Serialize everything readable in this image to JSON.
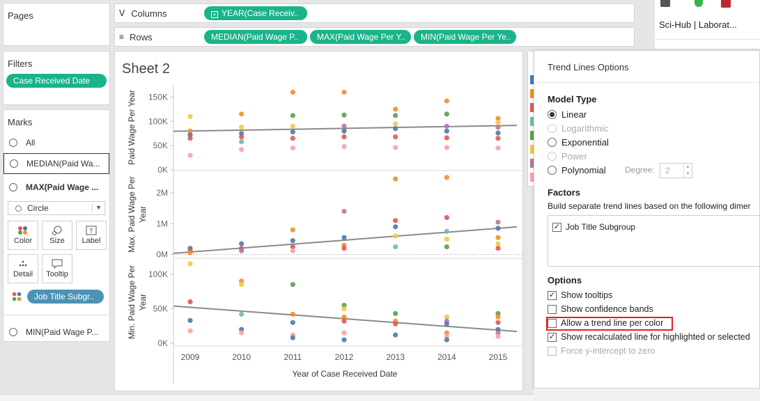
{
  "left_panel": {
    "pages_title": "Pages",
    "filters_title": "Filters",
    "filter_pill": "Case Received Date",
    "marks_title": "Marks",
    "marks_items": [
      "All",
      "MEDIAN(Paid Wa...",
      "MAX(Paid Wage ..."
    ],
    "marks_last_item": "MIN(Paid Wage P...",
    "mark_type": "Circle",
    "buttons": {
      "color": "Color",
      "size": "Size",
      "label": "Label",
      "detail": "Detail",
      "tooltip": "Tooltip"
    },
    "color_pill": "Job Title Subgr.."
  },
  "shelves": {
    "columns_label": "Columns",
    "rows_label": "Rows",
    "columns_pill": "YEAR(Case Receiv..",
    "rows_pills": [
      "MEDIAN(Paid Wage P..",
      "MAX(Paid Wage Per Y..",
      "MIN(Paid Wage Per Ye.."
    ]
  },
  "browser_tab": {
    "title": "Sci-Hub | Laborat..."
  },
  "sheet": {
    "title": "Sheet 2",
    "x_title": "Year of Case Received Date"
  },
  "trend_dialog": {
    "title": "Trend Lines Options",
    "model_type_label": "Model Type",
    "models": [
      {
        "label": "Linear",
        "selected": true,
        "enabled": true
      },
      {
        "label": "Logarithmic",
        "selected": false,
        "enabled": false
      },
      {
        "label": "Exponential",
        "selected": false,
        "enabled": true
      },
      {
        "label": "Power",
        "selected": false,
        "enabled": false
      },
      {
        "label": "Polynomial",
        "selected": false,
        "enabled": true
      }
    ],
    "degree_label": "Degree:",
    "degree_value": "2",
    "factors_label": "Factors",
    "factors_desc": "Build separate trend lines based on the following dimer",
    "factor_item": "Job Title Subgroup",
    "options_label": "Options",
    "options": [
      {
        "label": "Show tooltips",
        "checked": true,
        "enabled": true
      },
      {
        "label": "Show confidence bands",
        "checked": false,
        "enabled": true
      },
      {
        "label": "Allow a trend line per color",
        "checked": false,
        "enabled": true
      },
      {
        "label": "Show recalculated line for highlighted or selected",
        "checked": true,
        "enabled": true
      },
      {
        "label": "Force y-intercept to zero",
        "checked": false,
        "enabled": false
      }
    ]
  },
  "legend_colors": [
    "#4e79a7",
    "#f28e2b",
    "#e15759",
    "#76b7b2",
    "#59a14f",
    "#edc948",
    "#b07aa1",
    "#ff9da7"
  ],
  "chart_data": {
    "type": "scatter",
    "x": [
      2009,
      2010,
      2011,
      2012,
      2013,
      2014,
      2015
    ],
    "x_ticks": [
      "2009",
      "2010",
      "2011",
      "2012",
      "2013",
      "2014",
      "2015"
    ],
    "xlabel": "Year of Case Received Date",
    "panels": [
      {
        "name": "median",
        "ylabel": "Paid Wage Per Year",
        "ylim": [
          0,
          175000
        ],
        "yticks": [
          0,
          50000,
          100000,
          150000
        ],
        "ytick_labels": [
          "0K",
          "50K",
          "100K",
          "150K"
        ],
        "trend": [
          80000,
          91000
        ],
        "points": [
          [
            2009,
            110000,
            "#edc948"
          ],
          [
            2009,
            80000,
            "#f28e2b"
          ],
          [
            2009,
            72000,
            "#4e79a7"
          ],
          [
            2009,
            65000,
            "#e15759"
          ],
          [
            2009,
            30000,
            "#ff9da7"
          ],
          [
            2010,
            115000,
            "#f28e2b"
          ],
          [
            2010,
            88000,
            "#edc948"
          ],
          [
            2010,
            75000,
            "#4e79a7"
          ],
          [
            2010,
            68000,
            "#e15759"
          ],
          [
            2010,
            58000,
            "#76b7b2"
          ],
          [
            2010,
            42000,
            "#ff9da7"
          ],
          [
            2011,
            160000,
            "#f28e2b"
          ],
          [
            2011,
            112000,
            "#59a14f"
          ],
          [
            2011,
            90000,
            "#edc948"
          ],
          [
            2011,
            78000,
            "#4e79a7"
          ],
          [
            2011,
            65000,
            "#e15759"
          ],
          [
            2011,
            45000,
            "#ff9da7"
          ],
          [
            2012,
            160000,
            "#f28e2b"
          ],
          [
            2012,
            113000,
            "#59a14f"
          ],
          [
            2012,
            90000,
            "#b07aa1"
          ],
          [
            2012,
            80000,
            "#4e79a7"
          ],
          [
            2012,
            68000,
            "#e15759"
          ],
          [
            2012,
            48000,
            "#ff9da7"
          ],
          [
            2013,
            125000,
            "#f28e2b"
          ],
          [
            2013,
            112000,
            "#59a14f"
          ],
          [
            2013,
            95000,
            "#edc948"
          ],
          [
            2013,
            85000,
            "#4e79a7"
          ],
          [
            2013,
            68000,
            "#e15759"
          ],
          [
            2013,
            46000,
            "#ff9da7"
          ],
          [
            2014,
            142000,
            "#f28e2b"
          ],
          [
            2014,
            115000,
            "#59a14f"
          ],
          [
            2014,
            90000,
            "#b07aa1"
          ],
          [
            2014,
            80000,
            "#4e79a7"
          ],
          [
            2014,
            66000,
            "#e15759"
          ],
          [
            2014,
            46000,
            "#ff9da7"
          ],
          [
            2015,
            106000,
            "#f28e2b"
          ],
          [
            2015,
            98000,
            "#edc948"
          ],
          [
            2015,
            88000,
            "#b07aa1"
          ],
          [
            2015,
            76000,
            "#4e79a7"
          ],
          [
            2015,
            65000,
            "#e15759"
          ],
          [
            2015,
            45000,
            "#ff9da7"
          ]
        ]
      },
      {
        "name": "max",
        "ylabel": "Max. Paid Wage Per Year",
        "ylim": [
          -100000,
          2700000
        ],
        "yticks": [
          0,
          1000000,
          2000000
        ],
        "ytick_labels": [
          "0M",
          "1M",
          "2M"
        ],
        "trend": [
          80000,
          850000
        ],
        "points": [
          [
            2009,
            200000,
            "#4e79a7"
          ],
          [
            2009,
            120000,
            "#e15759"
          ],
          [
            2009,
            60000,
            "#f28e2b"
          ],
          [
            2010,
            350000,
            "#4e79a7"
          ],
          [
            2010,
            200000,
            "#e15759"
          ],
          [
            2010,
            120000,
            "#b07aa1"
          ],
          [
            2011,
            800000,
            "#f28e2b"
          ],
          [
            2011,
            450000,
            "#4e79a7"
          ],
          [
            2011,
            250000,
            "#e15759"
          ],
          [
            2011,
            120000,
            "#ff9da7"
          ],
          [
            2012,
            1400000,
            "#b07aa1"
          ],
          [
            2012,
            550000,
            "#4e79a7"
          ],
          [
            2012,
            300000,
            "#f28e2b"
          ],
          [
            2012,
            200000,
            "#e15759"
          ],
          [
            2013,
            2450000,
            "#f28e2b"
          ],
          [
            2013,
            1100000,
            "#e15759"
          ],
          [
            2013,
            900000,
            "#4e79a7"
          ],
          [
            2013,
            600000,
            "#edc948"
          ],
          [
            2013,
            250000,
            "#76b7b2"
          ],
          [
            2014,
            2500000,
            "#f28e2b"
          ],
          [
            2014,
            1200000,
            "#e15759"
          ],
          [
            2014,
            750000,
            "#76b7b2"
          ],
          [
            2014,
            500000,
            "#edc948"
          ],
          [
            2014,
            250000,
            "#59a14f"
          ],
          [
            2015,
            1050000,
            "#b07aa1"
          ],
          [
            2015,
            850000,
            "#4e79a7"
          ],
          [
            2015,
            550000,
            "#f28e2b"
          ],
          [
            2015,
            350000,
            "#edc948"
          ],
          [
            2015,
            200000,
            "#e15759"
          ]
        ]
      },
      {
        "name": "min",
        "ylabel": "Min. Paid Wage Per Year",
        "ylim": [
          -3000,
          122000
        ],
        "yticks": [
          0,
          50000,
          100000
        ],
        "ytick_labels": [
          "0K",
          "50K",
          "100K"
        ],
        "trend": [
          52000,
          19000
        ],
        "points": [
          [
            2009,
            115000,
            "#edc948"
          ],
          [
            2009,
            60000,
            "#e15759"
          ],
          [
            2009,
            33000,
            "#4e79a7"
          ],
          [
            2009,
            18000,
            "#ff9da7"
          ],
          [
            2010,
            90000,
            "#f28e2b"
          ],
          [
            2010,
            85000,
            "#edc948"
          ],
          [
            2010,
            42000,
            "#76b7b2"
          ],
          [
            2010,
            20000,
            "#4e79a7"
          ],
          [
            2010,
            15000,
            "#ff9da7"
          ],
          [
            2011,
            85000,
            "#59a14f"
          ],
          [
            2011,
            42000,
            "#f28e2b"
          ],
          [
            2011,
            30000,
            "#4e79a7"
          ],
          [
            2011,
            12000,
            "#ff9da7"
          ],
          [
            2011,
            8000,
            "#4e79a7"
          ],
          [
            2012,
            55000,
            "#59a14f"
          ],
          [
            2012,
            50000,
            "#edc948"
          ],
          [
            2012,
            38000,
            "#f28e2b"
          ],
          [
            2012,
            32000,
            "#e15759"
          ],
          [
            2012,
            15000,
            "#ff9da7"
          ],
          [
            2012,
            5000,
            "#4e79a7"
          ],
          [
            2013,
            43000,
            "#59a14f"
          ],
          [
            2013,
            32000,
            "#f28e2b"
          ],
          [
            2013,
            28000,
            "#e15759"
          ],
          [
            2013,
            12000,
            "#4e79a7"
          ],
          [
            2014,
            38000,
            "#edc948"
          ],
          [
            2014,
            32000,
            "#b07aa1"
          ],
          [
            2014,
            28000,
            "#4e79a7"
          ],
          [
            2014,
            15000,
            "#f28e2b"
          ],
          [
            2014,
            10000,
            "#ff9da7"
          ],
          [
            2014,
            5000,
            "#4e79a7"
          ],
          [
            2015,
            43000,
            "#59a14f"
          ],
          [
            2015,
            38000,
            "#f28e2b"
          ],
          [
            2015,
            30000,
            "#e15759"
          ],
          [
            2015,
            20000,
            "#4e79a7"
          ],
          [
            2015,
            15000,
            "#b07aa1"
          ],
          [
            2015,
            10000,
            "#ff9da7"
          ]
        ]
      }
    ]
  }
}
